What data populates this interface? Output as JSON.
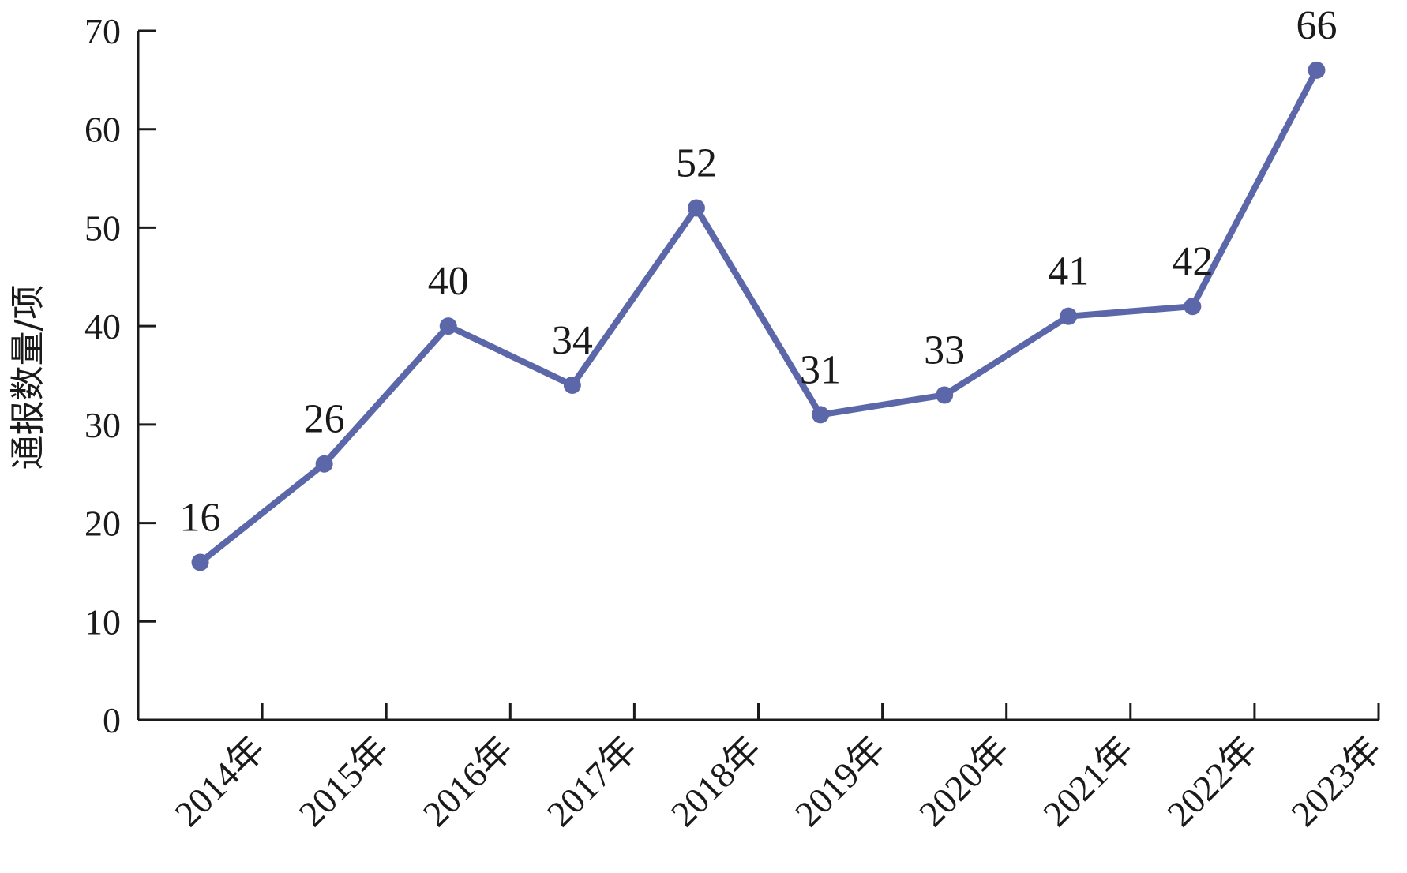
{
  "chart_data": {
    "type": "line",
    "title": "",
    "xlabel": "",
    "ylabel": "通报数量/项",
    "ylim": [
      0,
      70
    ],
    "yticks": [
      0,
      10,
      20,
      30,
      40,
      50,
      60,
      70
    ],
    "grid": false,
    "categories": [
      "2014年",
      "2015年",
      "2016年",
      "2017年",
      "2018年",
      "2019年",
      "2020年",
      "2021年",
      "2022年",
      "2023年"
    ],
    "series": [
      {
        "values": [
          16,
          26,
          40,
          34,
          52,
          31,
          33,
          41,
          42,
          66
        ],
        "color": "#5b67a8",
        "marker": "circle",
        "data_labels": [
          "16",
          "26",
          "40",
          "34",
          "52",
          "31",
          "33",
          "41",
          "42",
          "66"
        ]
      }
    ]
  }
}
